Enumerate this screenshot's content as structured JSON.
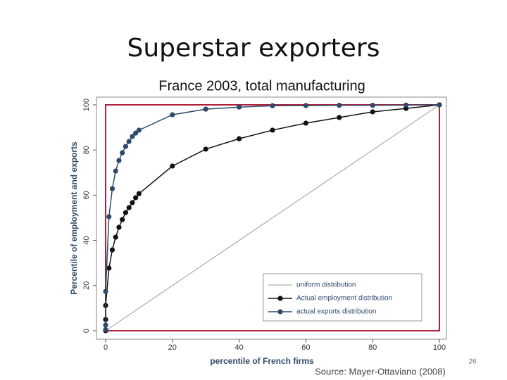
{
  "chart_data": {
    "type": "line",
    "title": "Superstar exporters",
    "subtitle": "France 2003, total manufacturing",
    "x_label": "percentile of French firms",
    "y_label": "Percentile of employment and exports",
    "xlim": [
      0,
      100
    ],
    "ylim": [
      0,
      100
    ],
    "xticks": [
      0,
      20,
      40,
      60,
      80,
      100
    ],
    "yticks": [
      0,
      20,
      40,
      60,
      80,
      100
    ],
    "frame_color": "#b0223a",
    "legend": "lower right",
    "series": [
      {
        "name": "uniform distribution",
        "color": "#9a9a9a",
        "markers": false,
        "x": [
          0,
          100
        ],
        "values": [
          0,
          100
        ]
      },
      {
        "name": "Actual employment distribution",
        "color": "#111111",
        "markers": true,
        "x": [
          0,
          0,
          0,
          1,
          2,
          3,
          4,
          5,
          6,
          7,
          8,
          9,
          10,
          20,
          30,
          40,
          50,
          60,
          70,
          80,
          90,
          100
        ],
        "values": [
          0,
          5,
          11.2,
          27.7,
          35.8,
          41.4,
          45.8,
          49.2,
          52.3,
          54.5,
          56.7,
          58.9,
          60.7,
          72.9,
          80.4,
          85,
          88.8,
          91.9,
          94.4,
          96.9,
          98.4,
          100
        ]
      },
      {
        "name": "actual exports distribution",
        "color": "#2e4a6b",
        "markers": true,
        "x": [
          0,
          0,
          0,
          1,
          2,
          3,
          4,
          5,
          6,
          7,
          8,
          9,
          10,
          20,
          30,
          40,
          50,
          60,
          70,
          80,
          90,
          100
        ],
        "values": [
          0.5,
          2.5,
          17.4,
          50.5,
          62.9,
          70.7,
          75.4,
          78.8,
          81.6,
          83.8,
          86,
          87.5,
          88.8,
          95.6,
          98.1,
          99,
          99.6,
          99.7,
          99.8,
          99.8,
          99.9,
          100
        ]
      }
    ]
  },
  "source": "Source: Mayer-Ottaviano (2008)",
  "slide_number": 26
}
